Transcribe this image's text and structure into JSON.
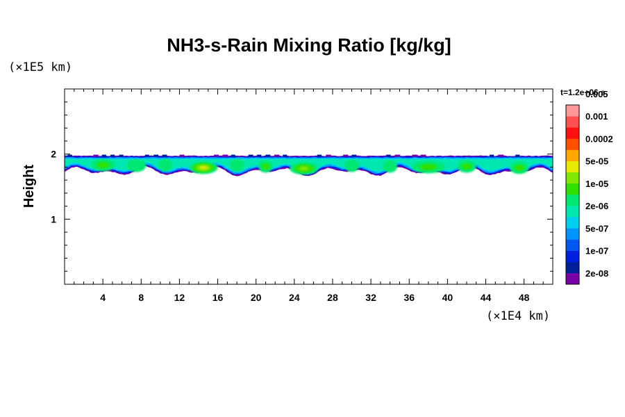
{
  "chart_data": {
    "type": "heatmap",
    "title": "NH3-s-Rain Mixing Ratio [kg/kg]",
    "ylabel": "Height",
    "yunit": "(×1E5 km)",
    "xunit": "(×1E4 km)",
    "xlim": [
      0,
      51
    ],
    "ylim": [
      0,
      3
    ],
    "xticks": [
      4,
      8,
      12,
      16,
      20,
      24,
      28,
      32,
      36,
      40,
      44,
      48
    ],
    "yticks": [
      1,
      2
    ],
    "time_label": "t=1.2e+06 s",
    "colorbar": {
      "colors": [
        "#7a00a8",
        "#00209a",
        "#0020e0",
        "#0058f0",
        "#0094ff",
        "#00d0f0",
        "#00e8b0",
        "#00e870",
        "#30e000",
        "#80e800",
        "#e8e800",
        "#ffa800",
        "#ff5000",
        "#ff1010",
        "#ff5050",
        "#ff9898"
      ],
      "labels": [
        "2e-08",
        "1e-07",
        "5e-07",
        "2e-06",
        "1e-05",
        "5e-05",
        "0.0002",
        "0.001",
        "0.005"
      ]
    },
    "layer": {
      "top_km_e5": 1.98,
      "bottom_km_e5_range": [
        1.65,
        1.8
      ],
      "peak_mixing_ratio": "5e-05",
      "cores": [
        {
          "x": 4,
          "y": 1.83,
          "w": 2.5,
          "level": 8
        },
        {
          "x": 7.5,
          "y": 1.82,
          "w": 2.0,
          "level": 7
        },
        {
          "x": 10.5,
          "y": 1.83,
          "w": 1.5,
          "level": 7
        },
        {
          "x": 14.5,
          "y": 1.79,
          "w": 3.0,
          "level": 10
        },
        {
          "x": 18,
          "y": 1.83,
          "w": 1.5,
          "level": 7
        },
        {
          "x": 21,
          "y": 1.81,
          "w": 1.5,
          "level": 8
        },
        {
          "x": 25,
          "y": 1.78,
          "w": 3.0,
          "level": 9
        },
        {
          "x": 30,
          "y": 1.82,
          "w": 1.5,
          "level": 7
        },
        {
          "x": 34,
          "y": 1.81,
          "w": 1.5,
          "level": 7
        },
        {
          "x": 38,
          "y": 1.8,
          "w": 3.5,
          "level": 8
        },
        {
          "x": 42,
          "y": 1.81,
          "w": 2.0,
          "level": 8
        },
        {
          "x": 47.5,
          "y": 1.79,
          "w": 2.0,
          "level": 8
        }
      ]
    }
  }
}
